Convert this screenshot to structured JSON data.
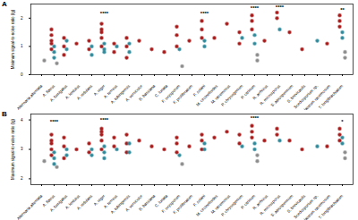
{
  "chart_data": [
    {
      "type": "scatter",
      "title": "A",
      "y_label": "Minimum signal-to-noise ratio (lg)",
      "marker": "circle",
      "categories": [
        "Alternaria alternata",
        "A. flavus",
        "A. fumigatus",
        "A. lentulus",
        "A. nidulans",
        "A. niger",
        "A. terreus",
        "A. tubingensis",
        "A. versicolor",
        "B. bassiana",
        "C. lunata",
        "F. oxysporum",
        "F. proliferatum",
        "F. solani",
        "M. circinelloides",
        "M. racemosus",
        "P. chrysogenum",
        "P. citrinum",
        "R. arrhizus",
        "R. microsporus",
        "S. apiospermum",
        "S. brevicaulis",
        "Scedosporium sp.",
        "Syncephalastrum racemosum",
        "T. longibrachiatum"
      ],
      "ylim": [
        0,
        2.5
      ],
      "yticks": [
        0,
        1,
        2
      ],
      "grid": false,
      "series": [
        {
          "color": "#a51c1c",
          "x": [
            "A. flavus",
            "A. flavus",
            "A. flavus",
            "A. flavus",
            "A. flavus",
            "A. fumigatus",
            "A. fumigatus",
            "A. fumigatus",
            "A. lentulus",
            "A. nidulans",
            "A. nidulans",
            "A. niger",
            "A. niger",
            "A. niger",
            "A. niger",
            "A. niger",
            "A. terreus",
            "A. terreus",
            "A. tubingensis",
            "A. tubingensis",
            "A. tubingensis",
            "A. versicolor",
            "B. bassiana",
            "C. lunata",
            "F. oxysporum",
            "F. oxysporum",
            "F. oxysporum",
            "F. proliferatum",
            "F. solani",
            "F. solani",
            "F. solani",
            "M. circinelloides",
            "M. racemosus",
            "P. chrysogenum",
            "P. chrysogenum",
            "P. citrinum",
            "P. citrinum",
            "P. citrinum",
            "R. arrhizus",
            "R. microsporus",
            "R. microsporus",
            "S. apiospermum",
            "S. brevicaulis",
            "Syncephalastrum racemosum",
            "T. longibrachiatum",
            "T. longibrachiatum",
            "T. longibrachiatum"
          ],
          "y": [
            1.4,
            1.1,
            0.9,
            1.6,
            1.2,
            1.0,
            0.7,
            1.3,
            1.1,
            0.9,
            1.2,
            1.5,
            1.8,
            1.3,
            1.0,
            1.6,
            0.8,
            1.1,
            1.0,
            0.6,
            1.3,
            1.2,
            0.9,
            0.8,
            1.4,
            1.7,
            1.0,
            1.2,
            1.6,
            1.9,
            1.3,
            1.3,
            1.8,
            1.5,
            1.1,
            1.9,
            2.1,
            1.6,
            1.2,
            2.0,
            2.2,
            1.5,
            0.9,
            1.1,
            1.9,
            1.7,
            2.1
          ]
        },
        {
          "color": "#2b8c9e",
          "x": [
            "A. flavus",
            "A. flavus",
            "A. flavus",
            "A. fumigatus",
            "A. fumigatus",
            "A. nidulans",
            "A. nidulans",
            "A. niger",
            "A. niger",
            "A. niger",
            "A. terreus",
            "A. tubingensis",
            "A. tubingensis",
            "F. oxysporum",
            "F. solani",
            "F. solani",
            "P. chrysogenum",
            "P. citrinum",
            "P. citrinum",
            "R. microsporus",
            "Scedosporium sp.",
            "T. longibrachiatum",
            "T. longibrachiatum"
          ],
          "y": [
            0.8,
            1.0,
            0.6,
            1.2,
            0.9,
            0.7,
            1.0,
            0.8,
            1.1,
            0.9,
            1.0,
            0.8,
            1.1,
            0.9,
            1.0,
            1.2,
            1.3,
            1.4,
            1.1,
            1.6,
            1.2,
            1.3,
            1.5
          ]
        },
        {
          "color": "#8c8c8c",
          "x": [
            "Alternaria alternata",
            "A. flavus",
            "F. oxysporum",
            "P. citrinum",
            "P. citrinum",
            "T. longibrachiatum",
            "T. longibrachiatum"
          ],
          "y": [
            0.5,
            0.4,
            0.3,
            0.7,
            0.5,
            0.8,
            0.6
          ]
        }
      ],
      "annotations": [
        {
          "x": "A. niger",
          "y": 2.15,
          "text": "****"
        },
        {
          "x": "F. solani",
          "y": 2.15,
          "text": "****"
        },
        {
          "x": "P. citrinum",
          "y": 2.35,
          "text": "****"
        },
        {
          "x": "R. microsporus",
          "y": 2.4,
          "text": "****"
        },
        {
          "x": "T. longibrachiatum",
          "y": 2.3,
          "text": "**"
        }
      ]
    },
    {
      "type": "scatter",
      "title": "B",
      "y_label": "Maximum signal-to-noise ratio (lg)",
      "marker": "circle",
      "categories": [
        "Alternaria alternata",
        "A. flavus",
        "A. fumigatus",
        "A. lentulus",
        "A. nidulans",
        "A. niger",
        "A. terreus",
        "A. tubingensis",
        "A. versicolor",
        "B. bassiana",
        "C. lunata",
        "F. oxysporum",
        "F. proliferatum",
        "F. solani",
        "M. circinelloides",
        "M. racemosus",
        "P. chrysogenum",
        "P. citrinum",
        "R. arrhizus",
        "R. microsporus",
        "S. apiospermum",
        "S. brevicaulis",
        "Scedosporium sp.",
        "Syncephalastrum racemosum",
        "T. longibrachiatum"
      ],
      "ylim": [
        1.8,
        4.2
      ],
      "yticks": [
        2,
        3,
        4
      ],
      "grid": false,
      "series": [
        {
          "color": "#a51c1c",
          "x": [
            "A. flavus",
            "A. flavus",
            "A. flavus",
            "A. flavus",
            "A. flavus",
            "A. fumigatus",
            "A. fumigatus",
            "A. fumigatus",
            "A. lentulus",
            "A. nidulans",
            "A. nidulans",
            "A. niger",
            "A. niger",
            "A. niger",
            "A. niger",
            "A. niger",
            "A. terreus",
            "A. terreus",
            "A. tubingensis",
            "A. tubingensis",
            "A. tubingensis",
            "A. versicolor",
            "B. bassiana",
            "C. lunata",
            "F. oxysporum",
            "F. oxysporum",
            "F. oxysporum",
            "F. proliferatum",
            "F. solani",
            "F. solani",
            "F. solani",
            "M. circinelloides",
            "M. racemosus",
            "P. chrysogenum",
            "P. chrysogenum",
            "P. citrinum",
            "P. citrinum",
            "P. citrinum",
            "R. arrhizus",
            "R. microsporus",
            "R. microsporus",
            "S. apiospermum",
            "S. brevicaulis",
            "Syncephalastrum racemosum",
            "T. longibrachiatum",
            "T. longibrachiatum",
            "T. longibrachiatum"
          ],
          "y": [
            3.3,
            3.0,
            3.5,
            2.8,
            3.2,
            3.1,
            2.7,
            3.4,
            3.0,
            3.2,
            2.9,
            3.6,
            3.3,
            3.7,
            3.0,
            3.5,
            3.4,
            3.1,
            3.2,
            2.9,
            3.5,
            3.3,
            3.1,
            3.0,
            3.2,
            3.4,
            2.9,
            3.1,
            3.3,
            3.5,
            3.0,
            3.4,
            3.6,
            3.2,
            3.5,
            3.6,
            3.8,
            3.4,
            3.3,
            3.7,
            3.5,
            3.3,
            3.0,
            3.1,
            3.5,
            3.7,
            3.3
          ]
        },
        {
          "color": "#2b8c9e",
          "x": [
            "A. flavus",
            "A. flavus",
            "A. flavus",
            "A. fumigatus",
            "A. fumigatus",
            "A. nidulans",
            "A. nidulans",
            "A. niger",
            "A. niger",
            "A. niger",
            "A. terreus",
            "A. tubingensis",
            "A. tubingensis",
            "F. oxysporum",
            "F. solani",
            "F. solani",
            "P. chrysogenum",
            "P. citrinum",
            "P. citrinum",
            "R. microsporus",
            "Scedosporium sp.",
            "T. longibrachiatum",
            "T. longibrachiatum"
          ],
          "y": [
            2.7,
            2.9,
            2.5,
            3.0,
            2.8,
            2.8,
            3.0,
            2.9,
            3.1,
            2.7,
            3.0,
            2.9,
            3.2,
            2.8,
            3.0,
            3.2,
            3.1,
            3.2,
            3.0,
            3.3,
            3.1,
            3.2,
            3.4
          ]
        },
        {
          "color": "#8c8c8c",
          "x": [
            "Alternaria alternata",
            "A. flavus",
            "F. oxysporum",
            "P. citrinum",
            "P. citrinum",
            "T. longibrachiatum",
            "T. longibrachiatum"
          ],
          "y": [
            2.6,
            2.4,
            2.5,
            2.8,
            2.6,
            2.9,
            2.7
          ]
        }
      ],
      "annotations": [
        {
          "x": "A. flavus",
          "y": 3.95,
          "text": "****"
        },
        {
          "x": "A. niger",
          "y": 4.0,
          "text": "****"
        },
        {
          "x": "P. citrinum",
          "y": 4.05,
          "text": "****"
        },
        {
          "x": "T. longibrachiatum",
          "y": 3.95,
          "text": "*"
        }
      ]
    }
  ]
}
